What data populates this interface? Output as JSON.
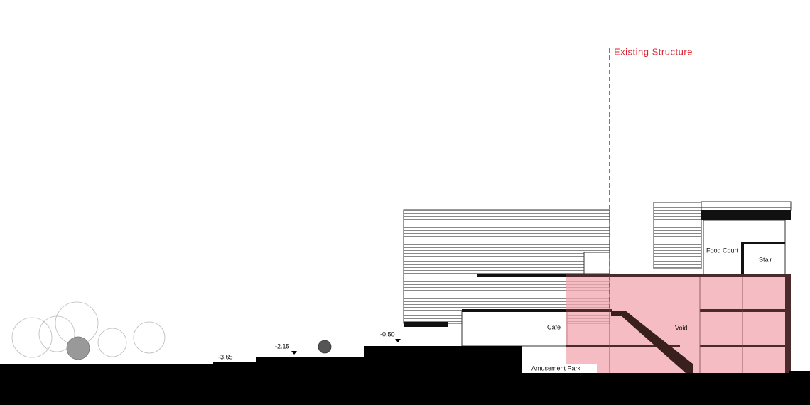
{
  "annotation": "Existing Structure",
  "rooms": [
    {
      "label": "Food Court"
    },
    {
      "label": "Stair"
    },
    {
      "label": "Void"
    },
    {
      "label": "Cafe"
    },
    {
      "label": "Amusement Park"
    }
  ],
  "levels": [
    {
      "label": "-3.65"
    },
    {
      "label": "-2.15"
    },
    {
      "label": "-0.50"
    }
  ]
}
